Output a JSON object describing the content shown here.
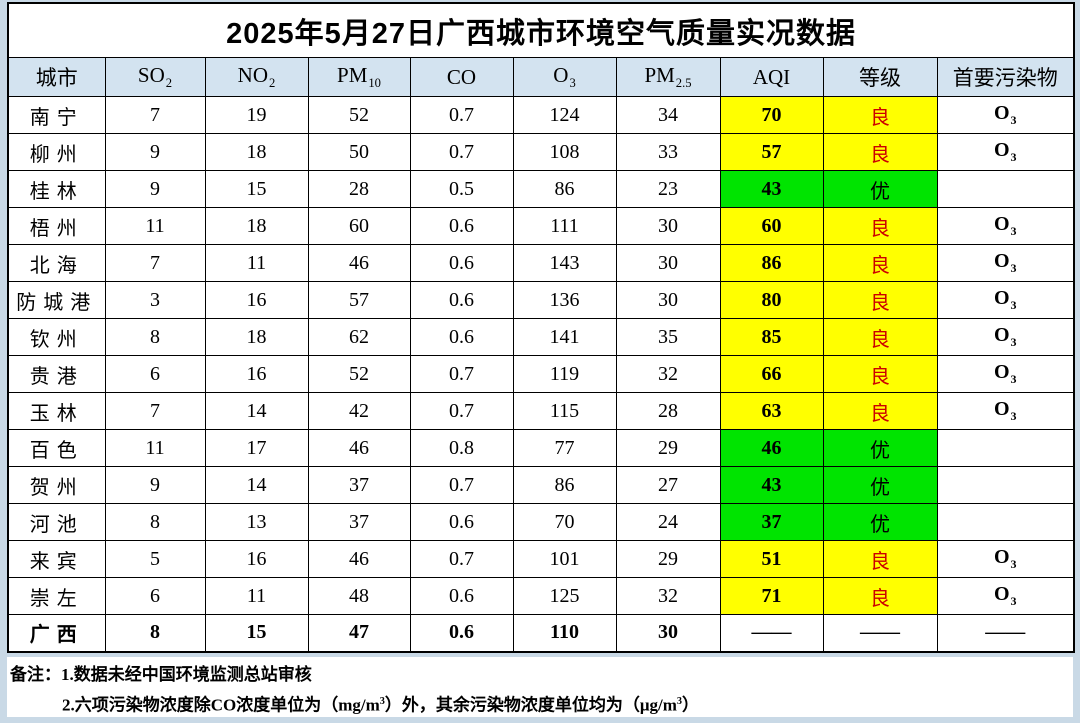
{
  "title": "2025年5月27日广西城市环境空气质量实况数据",
  "colors": {
    "header_bg": "#d3e3f0",
    "page_margin": "#c9d9e6",
    "aqi_yellow": "#ffff00",
    "aqi_green": "#00e400",
    "grade_liang_text": "#cc0000",
    "grade_you_text": "#000000"
  },
  "table": {
    "columns": [
      {
        "id": "city",
        "base": "城市",
        "sub": ""
      },
      {
        "id": "so2",
        "base": "SO",
        "sub": "2"
      },
      {
        "id": "no2",
        "base": "NO",
        "sub": "2"
      },
      {
        "id": "pm10",
        "base": "PM",
        "sub": "10"
      },
      {
        "id": "co",
        "base": "CO",
        "sub": ""
      },
      {
        "id": "o3",
        "base": "O",
        "sub": "3"
      },
      {
        "id": "pm25",
        "base": "PM",
        "sub": "2.5"
      },
      {
        "id": "aqi",
        "base": "AQI",
        "sub": ""
      },
      {
        "id": "grade",
        "base": "等级",
        "sub": ""
      },
      {
        "id": "primary",
        "base": "首要污染物",
        "sub": ""
      }
    ],
    "rows": [
      {
        "city": "南宁",
        "so2": "7",
        "no2": "19",
        "pm10": "52",
        "co": "0.7",
        "o3": "124",
        "pm25": "34",
        "aqi": "70",
        "grade": "良",
        "primary": "O",
        "primary_sub": "3",
        "color": "yellow",
        "total": false
      },
      {
        "city": "柳州",
        "so2": "9",
        "no2": "18",
        "pm10": "50",
        "co": "0.7",
        "o3": "108",
        "pm25": "33",
        "aqi": "57",
        "grade": "良",
        "primary": "O",
        "primary_sub": "3",
        "color": "yellow",
        "total": false
      },
      {
        "city": "桂林",
        "so2": "9",
        "no2": "15",
        "pm10": "28",
        "co": "0.5",
        "o3": "86",
        "pm25": "23",
        "aqi": "43",
        "grade": "优",
        "primary": "",
        "primary_sub": "",
        "color": "green",
        "total": false
      },
      {
        "city": "梧州",
        "so2": "11",
        "no2": "18",
        "pm10": "60",
        "co": "0.6",
        "o3": "111",
        "pm25": "30",
        "aqi": "60",
        "grade": "良",
        "primary": "O",
        "primary_sub": "3",
        "color": "yellow",
        "total": false
      },
      {
        "city": "北海",
        "so2": "7",
        "no2": "11",
        "pm10": "46",
        "co": "0.6",
        "o3": "143",
        "pm25": "30",
        "aqi": "86",
        "grade": "良",
        "primary": "O",
        "primary_sub": "3",
        "color": "yellow",
        "total": false
      },
      {
        "city": "防城港",
        "so2": "3",
        "no2": "16",
        "pm10": "57",
        "co": "0.6",
        "o3": "136",
        "pm25": "30",
        "aqi": "80",
        "grade": "良",
        "primary": "O",
        "primary_sub": "3",
        "color": "yellow",
        "total": false
      },
      {
        "city": "钦州",
        "so2": "8",
        "no2": "18",
        "pm10": "62",
        "co": "0.6",
        "o3": "141",
        "pm25": "35",
        "aqi": "85",
        "grade": "良",
        "primary": "O",
        "primary_sub": "3",
        "color": "yellow",
        "total": false
      },
      {
        "city": "贵港",
        "so2": "6",
        "no2": "16",
        "pm10": "52",
        "co": "0.7",
        "o3": "119",
        "pm25": "32",
        "aqi": "66",
        "grade": "良",
        "primary": "O",
        "primary_sub": "3",
        "color": "yellow",
        "total": false
      },
      {
        "city": "玉林",
        "so2": "7",
        "no2": "14",
        "pm10": "42",
        "co": "0.7",
        "o3": "115",
        "pm25": "28",
        "aqi": "63",
        "grade": "良",
        "primary": "O",
        "primary_sub": "3",
        "color": "yellow",
        "total": false
      },
      {
        "city": "百色",
        "so2": "11",
        "no2": "17",
        "pm10": "46",
        "co": "0.8",
        "o3": "77",
        "pm25": "29",
        "aqi": "46",
        "grade": "优",
        "primary": "",
        "primary_sub": "",
        "color": "green",
        "total": false
      },
      {
        "city": "贺州",
        "so2": "9",
        "no2": "14",
        "pm10": "37",
        "co": "0.7",
        "o3": "86",
        "pm25": "27",
        "aqi": "43",
        "grade": "优",
        "primary": "",
        "primary_sub": "",
        "color": "green",
        "total": false
      },
      {
        "city": "河池",
        "so2": "8",
        "no2": "13",
        "pm10": "37",
        "co": "0.6",
        "o3": "70",
        "pm25": "24",
        "aqi": "37",
        "grade": "优",
        "primary": "",
        "primary_sub": "",
        "color": "green",
        "total": false
      },
      {
        "city": "来宾",
        "so2": "5",
        "no2": "16",
        "pm10": "46",
        "co": "0.7",
        "o3": "101",
        "pm25": "29",
        "aqi": "51",
        "grade": "良",
        "primary": "O",
        "primary_sub": "3",
        "color": "yellow",
        "total": false
      },
      {
        "city": "崇左",
        "so2": "6",
        "no2": "11",
        "pm10": "48",
        "co": "0.6",
        "o3": "125",
        "pm25": "32",
        "aqi": "71",
        "grade": "良",
        "primary": "O",
        "primary_sub": "3",
        "color": "yellow",
        "total": false
      },
      {
        "city": "广西",
        "so2": "8",
        "no2": "15",
        "pm10": "47",
        "co": "0.6",
        "o3": "110",
        "pm25": "30",
        "aqi": "——",
        "grade": "——",
        "primary": "——",
        "primary_sub": "",
        "color": "none",
        "total": true
      }
    ]
  },
  "notes": {
    "label": "备注：",
    "line1": "1.数据未经中国环境监测总站审核",
    "line2_pre": "2.六项污染物浓度除CO浓度单位为（mg/m",
    "line2_sup1": "3",
    "line2_mid": "）外，其余污染物浓度单位均为（μg/m",
    "line2_sup2": "3",
    "line2_end": "）"
  }
}
